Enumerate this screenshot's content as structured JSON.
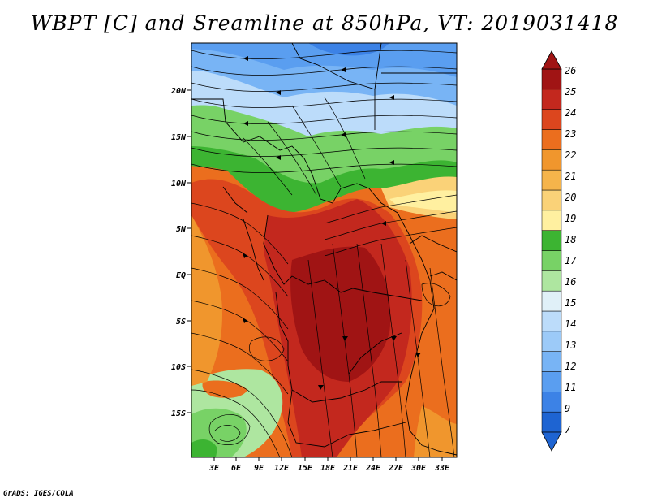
{
  "title": "WBPT [C] and Sreamline at 850hPa, VT: 2019031418",
  "credit": "GrADS: IGES/COLA",
  "axes": {
    "lat_labels": [
      "20N",
      "15N",
      "10N",
      "5N",
      "EQ",
      "5S",
      "10S",
      "15S"
    ],
    "lon_labels": [
      "3E",
      "6E",
      "9E",
      "12E",
      "15E",
      "18E",
      "21E",
      "24E",
      "27E",
      "30E",
      "33E"
    ]
  },
  "colorbar": {
    "labels": [
      "7",
      "9",
      "11",
      "12",
      "13",
      "14",
      "15",
      "16",
      "17",
      "18",
      "19",
      "20",
      "21",
      "22",
      "23",
      "24",
      "25",
      "26"
    ],
    "colors": [
      "#1e64d2",
      "#3c82e6",
      "#5a9ef0",
      "#78b4f5",
      "#9ccaf8",
      "#bcdcfa",
      "#e0f0f8",
      "#aee6a0",
      "#78d266",
      "#3cb432",
      "#fff0a0",
      "#fad278",
      "#f5b44b",
      "#f0962d",
      "#eb6e1e",
      "#dc461e",
      "#c3281e",
      "#a01414"
    ]
  }
}
